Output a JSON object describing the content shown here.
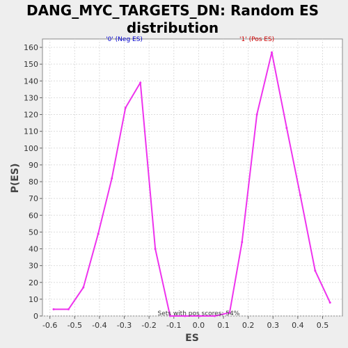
{
  "chart_data": {
    "type": "line",
    "title_lines": [
      "DANG_MYC_TARGETS_DN: Random ES",
      "distribution"
    ],
    "xlabel": "ES",
    "ylabel": "P(ES)",
    "xlim": [
      -0.63,
      0.58
    ],
    "ylim": [
      0,
      165
    ],
    "x_ticks": [
      -0.6,
      -0.5,
      -0.4,
      -0.3,
      -0.2,
      -0.1,
      0.0,
      0.1,
      0.2,
      0.3,
      0.4,
      0.5
    ],
    "x_tick_labels": [
      "-0.6",
      "-0.5",
      "-0.4",
      "-0.3",
      "-0.2",
      "-0.1",
      "0.0",
      "0.1",
      "0.2",
      "0.3",
      "0.4",
      "0.5"
    ],
    "y_ticks": [
      0,
      10,
      20,
      30,
      40,
      50,
      60,
      70,
      80,
      90,
      100,
      110,
      120,
      130,
      140,
      150,
      160
    ],
    "y_tick_labels": [
      "0",
      "10",
      "20",
      "30",
      "40",
      "50",
      "60",
      "70",
      "80",
      "90",
      "100",
      "110",
      "120",
      "130",
      "140",
      "150",
      "160"
    ],
    "grid": true,
    "series": [
      {
        "color": "#ee33ee",
        "x": [
          -0.585,
          -0.525,
          -0.465,
          -0.405,
          -0.35,
          -0.295,
          -0.235,
          -0.175,
          -0.115,
          -0.055,
          0.005,
          0.065,
          0.125,
          0.175,
          0.235,
          0.295,
          0.355,
          0.41,
          0.47,
          0.53
        ],
        "y": [
          4,
          4,
          17,
          49,
          82,
          124,
          139,
          40,
          0,
          0,
          0,
          0,
          2,
          44,
          120,
          157,
          112,
          72,
          27,
          8
        ]
      }
    ],
    "annotations": [
      {
        "text": "'0' (Neg ES)",
        "color": "#0000cc",
        "x": -0.3,
        "y": 160
      },
      {
        "text": "'1' (Pos ES)",
        "color": "#cc0000",
        "x": 0.235,
        "y": 160
      },
      {
        "text": "Sets with pos scores: 54%",
        "color": "#333333",
        "x": 0.0,
        "y": 0
      }
    ]
  }
}
